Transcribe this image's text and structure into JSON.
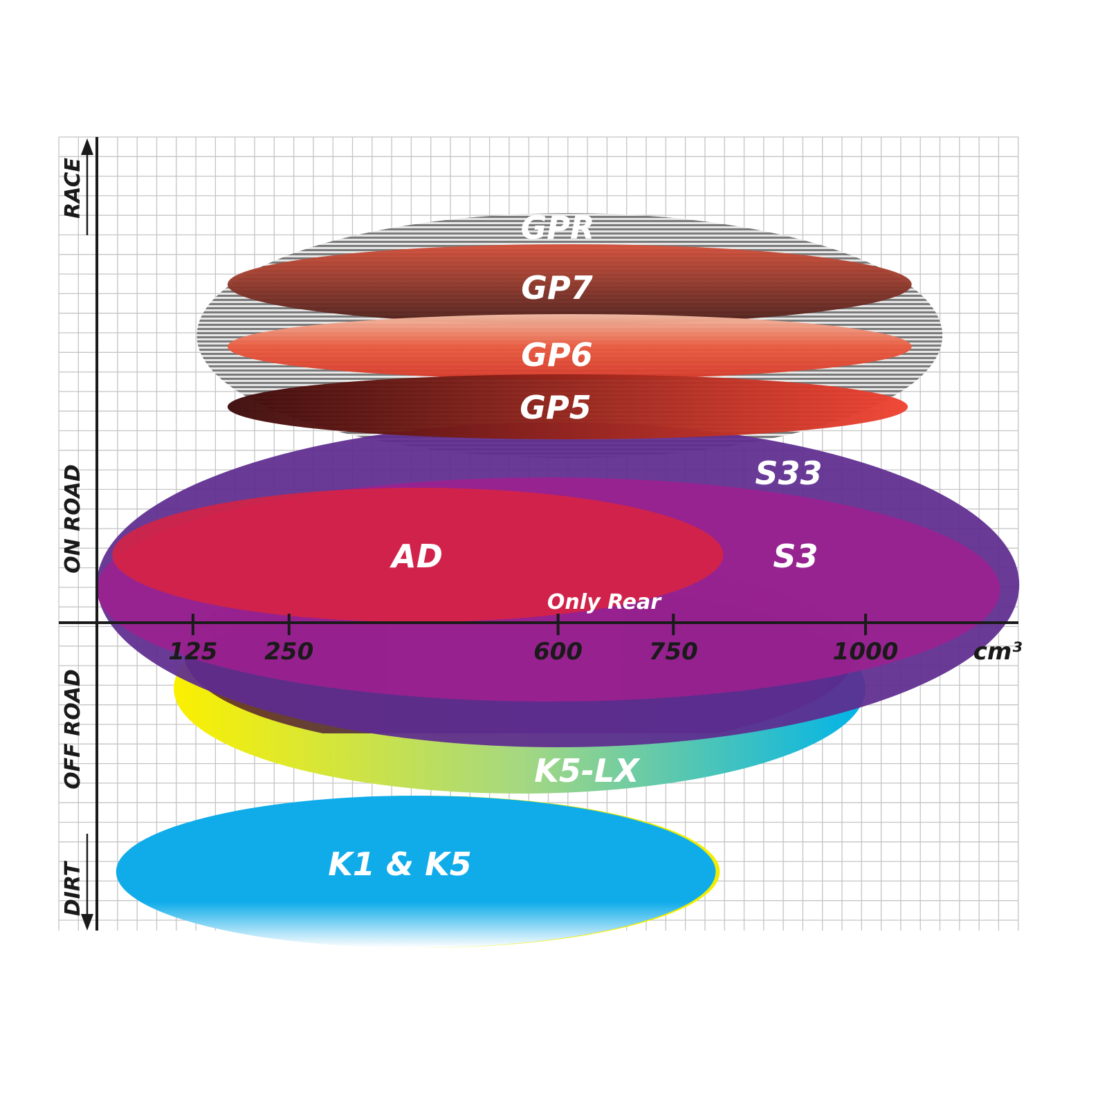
{
  "chart_data": {
    "type": "range-ellipse",
    "xlabel": "cm³",
    "x_unit": "cm³",
    "x_ticks": [
      125,
      250,
      600,
      750,
      1000
    ],
    "x_tick_labels": [
      "125",
      "250",
      "600",
      "750",
      "1000"
    ],
    "y_categories": [
      "RACE",
      "ON ROAD",
      "OFF ROAD",
      "DIRT"
    ],
    "grid": true,
    "series": [
      {
        "name": "GPR",
        "cc_min": 130,
        "cc_max": 1100,
        "color": "#9a9a9a"
      },
      {
        "name": "GP7",
        "cc_min": 170,
        "cc_max": 1060,
        "color": "#a2432e"
      },
      {
        "name": "GP6",
        "cc_min": 170,
        "cc_max": 1060,
        "color": "#e2452e"
      },
      {
        "name": "GP5",
        "cc_min": 170,
        "cc_max": 1055,
        "color": "#b41e1e"
      },
      {
        "name": "S33",
        "cc_min": 0,
        "cc_max": 1200,
        "color": "#5e2c8f"
      },
      {
        "name": "S3",
        "cc_min": 0,
        "cc_max": 1175,
        "color": "#a0208f"
      },
      {
        "name": "AD",
        "cc_min": 20,
        "cc_max": 815,
        "color": "#da2240"
      },
      {
        "name": "K5-LX",
        "cc_min": 100,
        "cc_max": 1000,
        "color": "#f5ee14",
        "color2": "#16b4e2"
      },
      {
        "name": "K1 & K5",
        "cc_min": 25,
        "cc_max": 805,
        "color": "#10acea"
      }
    ],
    "annotations": [
      "Only Rear"
    ]
  }
}
